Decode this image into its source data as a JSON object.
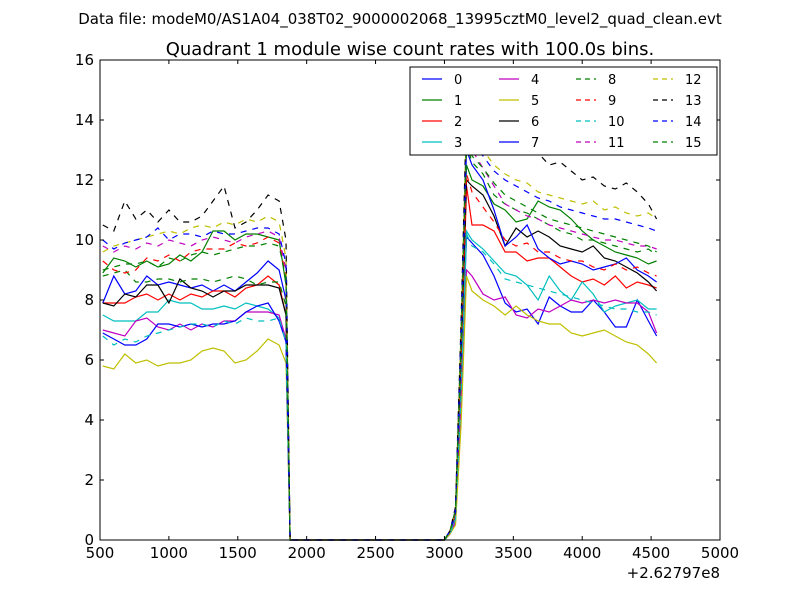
{
  "chart_data": {
    "type": "line",
    "suptitle": "Data file: modeM0/AS1A04_038T02_9000002068_13995cztM0_level2_quad_clean.evt",
    "title": "Quadrant 1 module wise count rates with 100.0s bins.",
    "xlabel": "",
    "ylabel": "",
    "x_offset_label": "+2.62797e8",
    "xlim": [
      500,
      5000
    ],
    "ylim": [
      0,
      16
    ],
    "xticks": [
      500,
      1000,
      1500,
      2000,
      2500,
      3000,
      3500,
      4000,
      4500,
      5000
    ],
    "xtick_labels": [
      "500",
      "1000",
      "1500",
      "2000",
      "2500",
      "3000",
      "3500",
      "4000",
      "4500",
      "5000"
    ],
    "yticks": [
      0,
      2,
      4,
      6,
      8,
      10,
      12,
      14,
      16
    ],
    "ytick_labels": [
      "0",
      "2",
      "4",
      "6",
      "8",
      "10",
      "12",
      "14",
      "16"
    ],
    "grid": false,
    "legend_position": "top-right",
    "x": [
      520,
      600,
      680,
      760,
      840,
      920,
      1000,
      1080,
      1160,
      1240,
      1320,
      1400,
      1480,
      1560,
      1640,
      1720,
      1800,
      1850,
      1880,
      1920,
      2000,
      2500,
      3000,
      3040,
      3080,
      3120,
      3160,
      3200,
      3280,
      3360,
      3440,
      3520,
      3600,
      3680,
      3760,
      3840,
      3920,
      4000,
      4080,
      4160,
      4240,
      4320,
      4400,
      4480,
      4540
    ],
    "series": [
      {
        "name": "0",
        "color": "#0000ff",
        "dash": "solid",
        "values": [
          7.9,
          8.8,
          8.2,
          8.3,
          8.8,
          8.5,
          8.6,
          8.5,
          8.4,
          8.5,
          8.3,
          8.5,
          8.3,
          8.6,
          8.9,
          9.3,
          9.0,
          8.0,
          0.0,
          0.0,
          0.0,
          0.0,
          0.0,
          0.3,
          0.8,
          5.0,
          10.1,
          9.9,
          9.5,
          8.8,
          7.9,
          7.6,
          7.7,
          7.2,
          8.1,
          7.8,
          7.6,
          7.6,
          8.0,
          7.6,
          7.1,
          7.1,
          8.0,
          7.3,
          6.8
        ]
      },
      {
        "name": "1",
        "color": "#008000",
        "dash": "solid",
        "values": [
          8.9,
          9.4,
          9.3,
          9.1,
          9.3,
          9.1,
          9.2,
          9.5,
          9.3,
          9.6,
          10.3,
          10.3,
          10.0,
          10.2,
          10.2,
          10.1,
          10.0,
          8.5,
          0.0,
          0.0,
          0.0,
          0.0,
          0.0,
          0.3,
          0.9,
          6.0,
          12.5,
          12.0,
          11.8,
          11.2,
          11.0,
          10.6,
          10.7,
          11.3,
          11.1,
          11.0,
          10.7,
          10.3,
          10.0,
          9.8,
          9.6,
          9.5,
          9.4,
          9.2,
          9.3
        ]
      },
      {
        "name": "2",
        "color": "#ff0000",
        "dash": "solid",
        "values": [
          7.9,
          7.9,
          7.9,
          8.1,
          8.2,
          8.0,
          8.2,
          8.0,
          8.2,
          8.1,
          8.3,
          8.3,
          8.1,
          8.4,
          8.5,
          8.8,
          8.5,
          7.5,
          0.0,
          0.0,
          0.0,
          0.0,
          0.0,
          0.3,
          0.8,
          5.5,
          11.8,
          10.5,
          10.5,
          10.3,
          9.6,
          9.6,
          9.3,
          9.4,
          9.4,
          9.1,
          8.8,
          8.6,
          8.7,
          8.5,
          8.8,
          8.4,
          8.6,
          8.5,
          8.4
        ]
      },
      {
        "name": "3",
        "color": "#00bfbf",
        "dash": "solid",
        "values": [
          7.5,
          7.3,
          7.3,
          7.3,
          7.6,
          7.6,
          8.0,
          7.9,
          7.9,
          7.7,
          7.7,
          7.8,
          7.7,
          7.9,
          7.8,
          7.7,
          7.4,
          6.6,
          0.0,
          0.0,
          0.0,
          0.0,
          0.0,
          0.2,
          0.7,
          5.0,
          10.3,
          10.0,
          9.7,
          9.3,
          8.9,
          8.8,
          8.5,
          8.0,
          8.8,
          8.3,
          8.0,
          8.6,
          8.2,
          7.6,
          7.8,
          7.9,
          8.0,
          7.7,
          7.7
        ]
      },
      {
        "name": "4",
        "color": "#bf00bf",
        "dash": "solid",
        "values": [
          7.0,
          6.9,
          6.8,
          7.3,
          7.4,
          7.1,
          7.0,
          7.2,
          7.0,
          7.2,
          7.1,
          7.3,
          7.3,
          7.6,
          7.6,
          7.6,
          7.5,
          6.7,
          0.0,
          0.0,
          0.0,
          0.0,
          0.0,
          0.2,
          0.6,
          4.5,
          9.0,
          8.8,
          8.2,
          8.0,
          8.1,
          7.5,
          7.4,
          7.7,
          7.6,
          7.8,
          8.0,
          7.9,
          8.0,
          7.9,
          8.0,
          7.9,
          7.9,
          7.6,
          6.9
        ]
      },
      {
        "name": "5",
        "color": "#bfbf00",
        "dash": "solid",
        "values": [
          5.8,
          5.7,
          6.2,
          5.9,
          6.0,
          5.8,
          5.9,
          5.9,
          6.0,
          6.3,
          6.4,
          6.3,
          5.9,
          6.0,
          6.3,
          6.7,
          6.5,
          5.9,
          0.0,
          0.0,
          0.0,
          0.0,
          0.0,
          0.2,
          0.5,
          3.8,
          8.8,
          8.3,
          8.0,
          7.8,
          7.5,
          7.8,
          7.5,
          7.3,
          7.2,
          7.2,
          6.9,
          6.8,
          6.9,
          7.0,
          6.8,
          6.6,
          6.5,
          6.2,
          5.9
        ]
      },
      {
        "name": "6",
        "color": "#000000",
        "dash": "solid",
        "values": [
          7.9,
          7.8,
          8.2,
          8.1,
          8.5,
          8.5,
          7.9,
          8.7,
          8.4,
          8.3,
          8.1,
          8.3,
          8.3,
          8.5,
          8.5,
          8.5,
          8.4,
          7.5,
          0.0,
          0.0,
          0.0,
          0.0,
          0.0,
          0.3,
          0.9,
          6.0,
          12.0,
          11.8,
          11.5,
          10.8,
          9.8,
          10.4,
          10.1,
          10.3,
          10.1,
          9.8,
          9.7,
          9.6,
          9.8,
          9.4,
          9.3,
          9.1,
          8.9,
          8.6,
          8.3
        ]
      },
      {
        "name": "7",
        "color": "#0000ff",
        "dash": "solid",
        "values": [
          6.9,
          6.7,
          6.5,
          6.5,
          6.7,
          7.2,
          7.2,
          7.1,
          7.2,
          7.1,
          7.2,
          7.2,
          7.3,
          7.6,
          7.8,
          7.9,
          7.3,
          6.6,
          0.0,
          0.0,
          0.0,
          0.0,
          0.0,
          0.3,
          0.9,
          6.5,
          13.0,
          12.5,
          12.0,
          11.0,
          9.8,
          10.1,
          10.5,
          9.7,
          9.4,
          9.2,
          9.3,
          9.2,
          9.0,
          9.1,
          9.2,
          9.4,
          9.0,
          8.8,
          8.6
        ]
      },
      {
        "name": "8",
        "color": "#008000",
        "dash": "dashed",
        "values": [
          8.8,
          8.9,
          9.0,
          8.6,
          8.6,
          8.7,
          8.7,
          8.6,
          8.7,
          8.7,
          8.6,
          8.7,
          8.8,
          8.7,
          8.5,
          8.6,
          8.6,
          7.8,
          0.0,
          0.0,
          0.0,
          0.0,
          0.0,
          0.3,
          1.0,
          6.5,
          13.2,
          12.6,
          12.2,
          11.5,
          11.2,
          11.0,
          10.9,
          10.7,
          10.5,
          10.3,
          10.2,
          10.0,
          10.0,
          9.9,
          9.8,
          9.7,
          9.6,
          9.7,
          9.5
        ]
      },
      {
        "name": "9",
        "color": "#ff0000",
        "dash": "dashed",
        "values": [
          9.3,
          9.0,
          8.9,
          9.0,
          9.4,
          9.3,
          9.5,
          9.3,
          9.6,
          9.7,
          9.7,
          9.7,
          9.9,
          9.8,
          9.9,
          10.1,
          9.9,
          8.8,
          0.0,
          0.0,
          0.0,
          0.0,
          0.0,
          0.3,
          0.9,
          6.0,
          12.2,
          11.6,
          11.1,
          10.6,
          10.0,
          9.8,
          9.9,
          9.6,
          9.6,
          9.4,
          9.3,
          9.3,
          9.1,
          9.0,
          9.2,
          9.0,
          9.1,
          8.9,
          8.8
        ]
      },
      {
        "name": "10",
        "color": "#00bfbf",
        "dash": "dashed",
        "values": [
          6.8,
          6.5,
          6.7,
          6.6,
          6.8,
          6.9,
          7.0,
          7.1,
          7.2,
          7.2,
          7.1,
          7.3,
          7.2,
          7.4,
          7.3,
          7.3,
          7.4,
          6.6,
          0.0,
          0.0,
          0.0,
          0.0,
          0.0,
          0.2,
          0.7,
          4.8,
          10.2,
          9.8,
          9.6,
          9.2,
          8.7,
          8.6,
          8.5,
          8.4,
          8.3,
          8.2,
          8.1,
          8.0,
          7.9,
          7.8,
          7.7,
          7.7,
          7.6,
          7.6,
          7.5
        ]
      },
      {
        "name": "11",
        "color": "#bf00bf",
        "dash": "dashed",
        "values": [
          9.8,
          9.6,
          9.8,
          9.7,
          9.9,
          9.8,
          10.0,
          9.9,
          9.8,
          10.0,
          10.1,
          10.0,
          9.9,
          10.1,
          10.2,
          10.3,
          10.1,
          9.0,
          0.0,
          0.0,
          0.0,
          0.0,
          0.0,
          0.3,
          1.0,
          6.8,
          13.8,
          13.0,
          12.4,
          11.8,
          11.2,
          11.0,
          10.8,
          10.7,
          10.5,
          10.4,
          10.3,
          10.2,
          10.1,
          10.0,
          10.0,
          9.9,
          9.8,
          9.8,
          9.7
        ]
      },
      {
        "name": "12",
        "color": "#bfbf00",
        "dash": "dashed",
        "values": [
          9.6,
          9.8,
          9.9,
          10.0,
          10.1,
          10.2,
          10.3,
          10.2,
          10.4,
          10.5,
          10.4,
          10.6,
          10.5,
          10.7,
          10.6,
          10.8,
          10.6,
          9.4,
          0.0,
          0.0,
          0.0,
          0.0,
          0.0,
          0.3,
          1.0,
          7.0,
          14.0,
          13.4,
          13.0,
          12.5,
          12.2,
          12.0,
          11.9,
          11.6,
          11.5,
          11.4,
          11.3,
          11.2,
          11.3,
          11.0,
          11.1,
          10.9,
          10.8,
          10.9,
          10.7
        ]
      },
      {
        "name": "13",
        "color": "#000000",
        "dash": "dashed",
        "values": [
          10.5,
          10.3,
          11.3,
          10.7,
          11.0,
          10.6,
          11.0,
          10.6,
          10.6,
          10.8,
          11.3,
          11.8,
          10.4,
          10.6,
          11.0,
          11.5,
          11.3,
          10.0,
          0.0,
          0.0,
          0.0,
          0.0,
          0.0,
          0.3,
          1.1,
          7.2,
          14.4,
          14.2,
          13.8,
          13.6,
          13.0,
          13.5,
          13.2,
          12.9,
          12.5,
          12.6,
          12.3,
          12.0,
          12.1,
          11.8,
          11.7,
          11.9,
          11.6,
          11.2,
          10.7
        ]
      },
      {
        "name": "14",
        "color": "#0000ff",
        "dash": "dashed",
        "values": [
          10.0,
          9.7,
          9.9,
          10.0,
          10.1,
          10.4,
          10.0,
          10.2,
          10.2,
          10.1,
          10.3,
          10.2,
          10.2,
          10.3,
          10.4,
          10.4,
          10.2,
          9.2,
          0.0,
          0.0,
          0.0,
          0.0,
          0.0,
          0.3,
          1.0,
          6.8,
          13.6,
          13.2,
          12.8,
          12.3,
          12.0,
          11.8,
          11.6,
          11.4,
          11.3,
          11.1,
          11.0,
          10.9,
          10.8,
          10.7,
          10.7,
          10.6,
          10.5,
          10.4,
          10.3
        ]
      },
      {
        "name": "15",
        "color": "#008000",
        "dash": "dashed",
        "values": [
          9.0,
          9.1,
          9.2,
          9.2,
          9.3,
          9.1,
          9.4,
          9.3,
          9.5,
          9.6,
          9.5,
          9.6,
          9.7,
          9.8,
          9.8,
          9.9,
          9.8,
          8.7,
          0.0,
          0.0,
          0.0,
          0.0,
          0.0,
          0.3,
          1.0,
          6.5,
          13.4,
          12.8,
          12.4,
          11.9,
          11.5,
          11.3,
          11.1,
          10.9,
          10.7,
          10.6,
          10.5,
          10.4,
          10.3,
          10.2,
          10.1,
          10.0,
          9.9,
          9.8,
          9.6
        ]
      }
    ]
  }
}
